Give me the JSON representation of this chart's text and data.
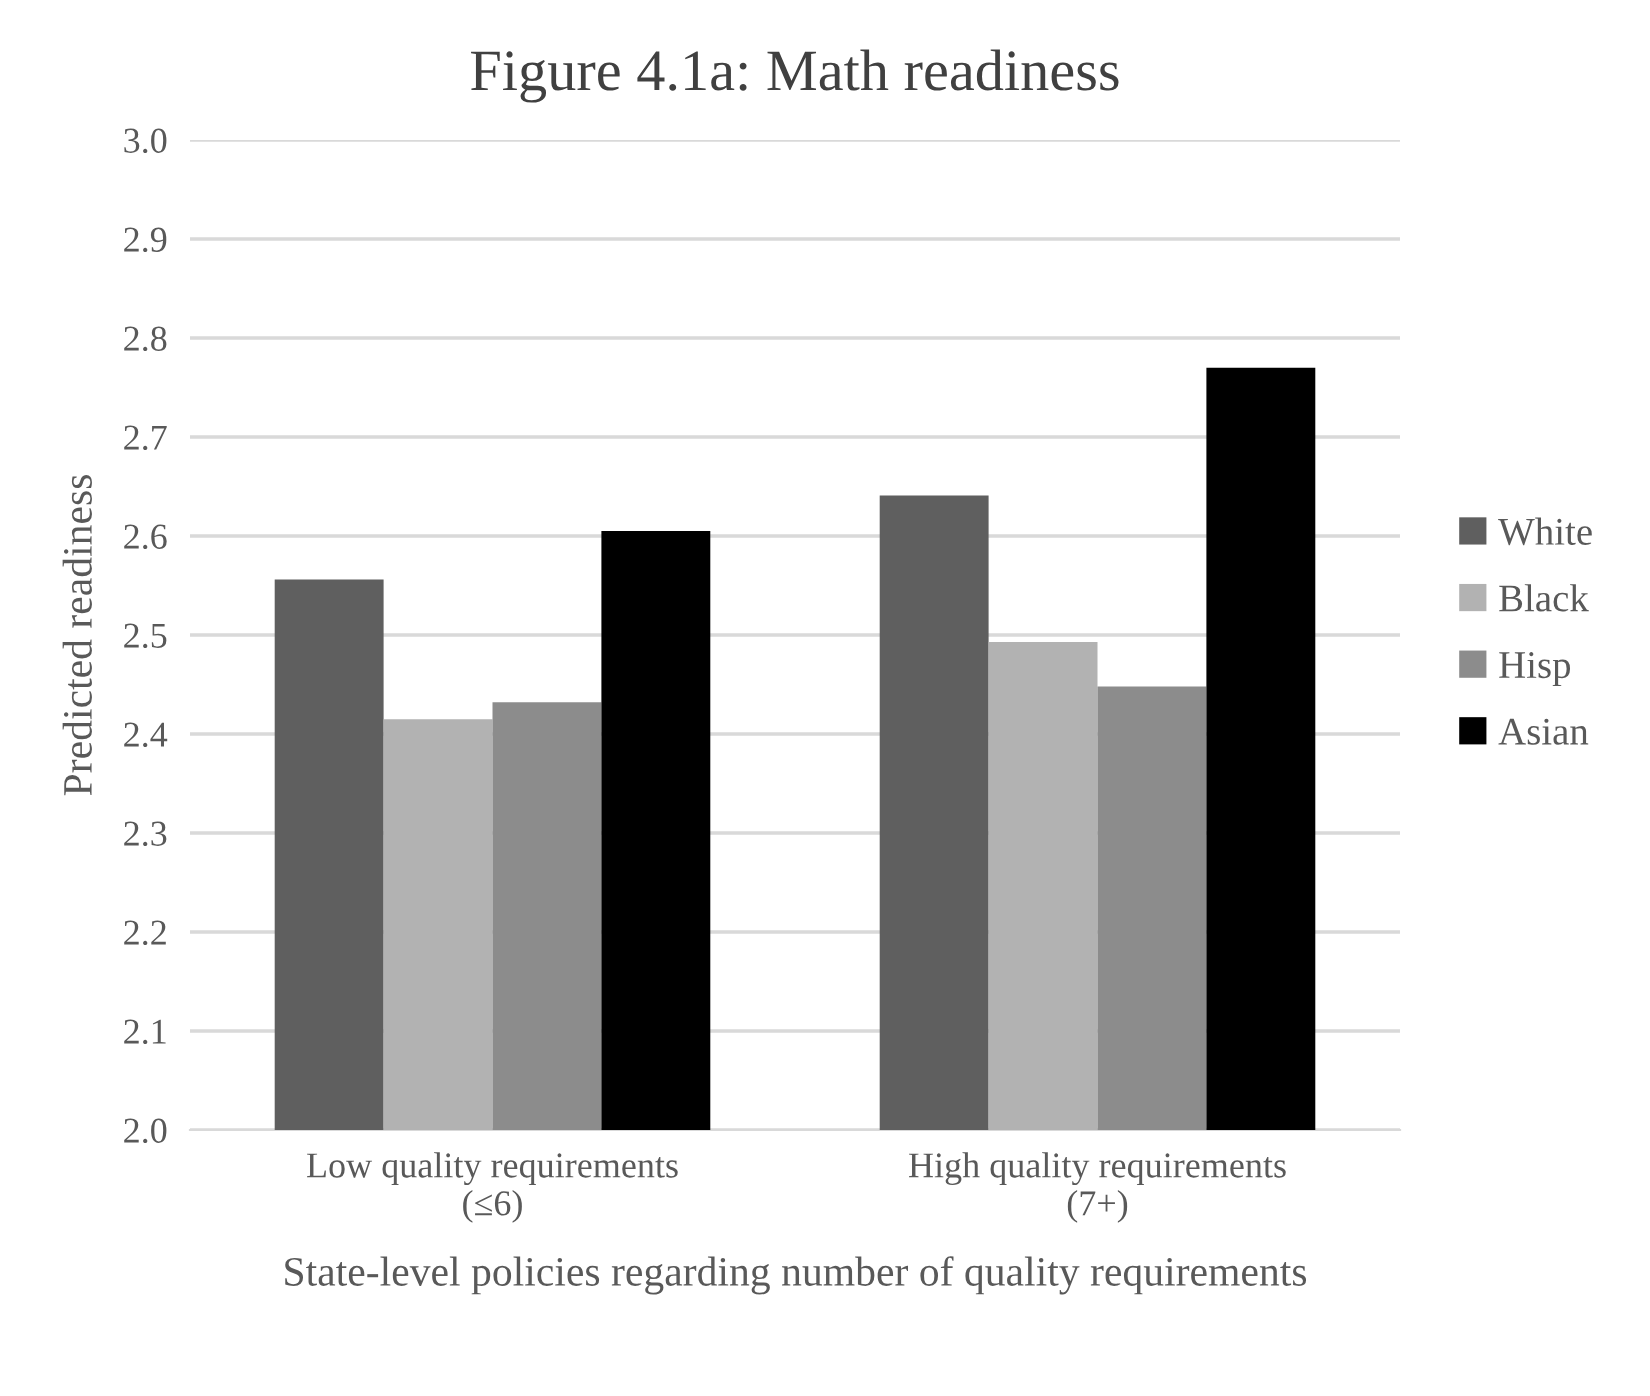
{
  "chart_data": {
    "type": "bar",
    "title": "Figure 4.1a: Math readiness",
    "xlabel": "State-level policies regarding number of quality requirements",
    "ylabel": "Predicted readiness",
    "categories": [
      "Low quality requirements\n(≤6)",
      "High quality requirements\n(7+)"
    ],
    "series": [
      {
        "name": "White",
        "color": "#5f5f5f",
        "values": [
          2.556,
          2.641
        ]
      },
      {
        "name": "Black",
        "color": "#b2b2b2",
        "values": [
          2.415,
          2.493
        ]
      },
      {
        "name": "Hisp",
        "color": "#8c8c8c",
        "values": [
          2.432,
          2.448
        ]
      },
      {
        "name": "Asian",
        "color": "#000000",
        "values": [
          2.605,
          2.77
        ]
      }
    ],
    "ylim": [
      2.0,
      3.0
    ],
    "yticks": [
      {
        "value": 2.0,
        "label": "2.0"
      },
      2.1,
      2.2,
      2.3,
      2.4,
      2.5,
      2.6,
      2.7,
      2.8,
      2.9,
      {
        "value": 3.0,
        "label": "3.0"
      }
    ],
    "grid": "y",
    "legend": "right"
  }
}
